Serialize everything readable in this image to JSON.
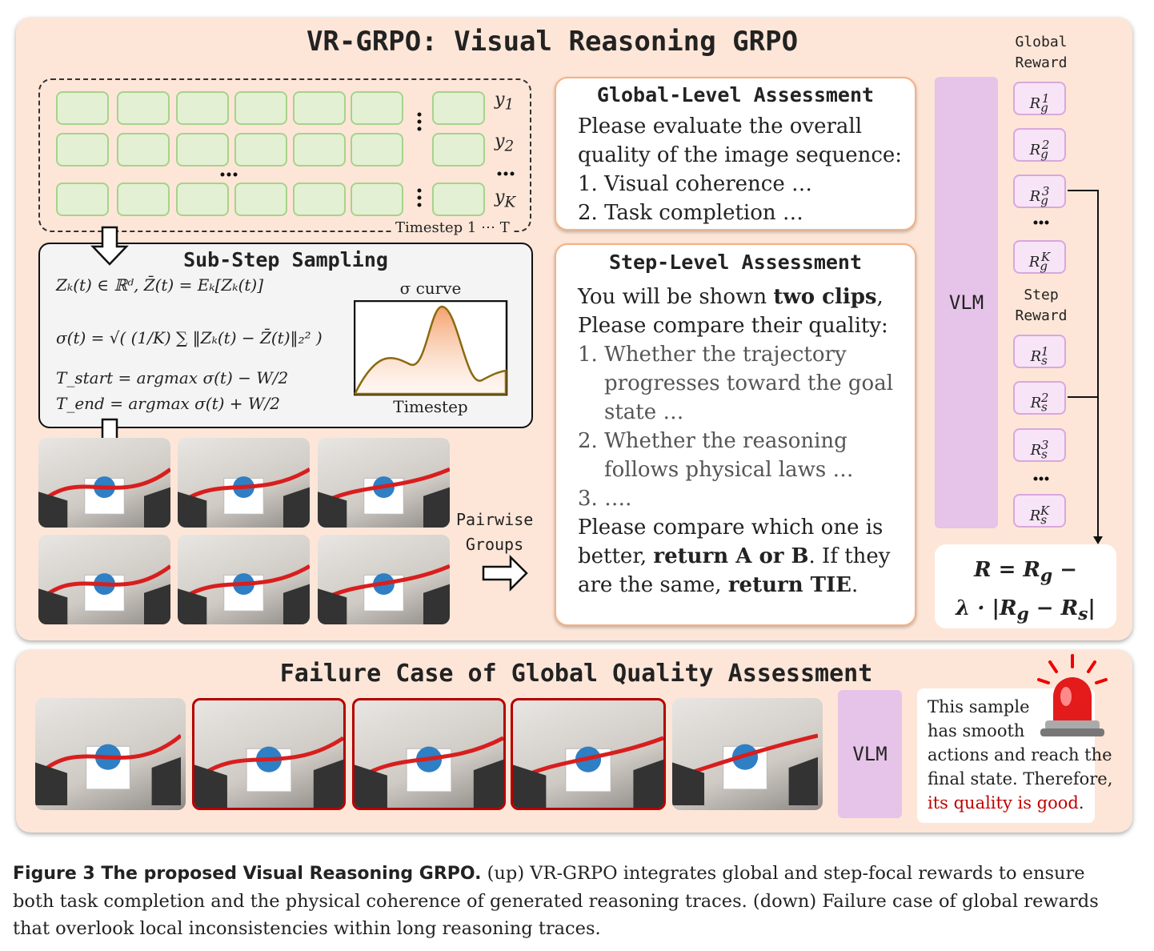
{
  "title": "VR-GRPO: Visual Reasoning GRPO",
  "sequence": {
    "label": "y",
    "subs": [
      "1",
      "2",
      "K"
    ],
    "timestep": "Timestep 1 ⋯ T"
  },
  "sampling": {
    "title": "Sub-Step Sampling",
    "formulas": [
      "Zₖ(t) ∈ ℝᵈ, Z̄(t) = Eₖ[Zₖ(t)]",
      "σ(t) = √( (1/K) ∑ ‖Zₖ(t) − Z̄(t)‖₂² )",
      "T_start = argmax σ(t) − W/2",
      "T_end  = argmax σ(t) + W/2"
    ],
    "curve_title": "σ curve",
    "curve_axis": "Timestep"
  },
  "pairwise": "Pairwise Groups",
  "global_assessment": {
    "title": "Global-Level Assessment",
    "lines": [
      "Please evaluate the overall",
      "quality of the image sequence:",
      "1.   Visual coherence …",
      "2.   Task completion …"
    ]
  },
  "step_assessment": {
    "title": "Step-Level Assessment",
    "intro": [
      "You will be shown ",
      "two clips",
      ","
    ],
    "lines": [
      "Please compare their quality:",
      "1. Whether the trajectory",
      "progresses toward the goal",
      "state …",
      "2. Whether the reasoning",
      "follows physical laws …",
      "3. …."
    ],
    "outro": [
      "Please compare which one is",
      "better, ",
      "return A or B",
      ". If they",
      "are the same, ",
      "return TIE",
      "."
    ]
  },
  "vlm": "VLM",
  "rewards": {
    "global_label": [
      "Global",
      "Reward"
    ],
    "step_label": [
      "Step",
      "Reward"
    ],
    "symbol": "R",
    "global_sub": "g",
    "step_sub": "s",
    "sups": [
      "1",
      "2",
      "3",
      "K"
    ]
  },
  "formula": {
    "line1": [
      "R = R",
      "g",
      " −"
    ],
    "line2": [
      "λ · |R",
      "g",
      " − R",
      "s",
      "|"
    ]
  },
  "failure": {
    "title": "Failure Case of Global Quality Assessment",
    "vlm": "VLM",
    "text": [
      "This sample",
      "has smooth",
      "actions and reach the",
      "final state. Therefore,"
    ],
    "verdict": "its quality is good",
    "end": "."
  },
  "caption": {
    "label": "Figure 3  The proposed Visual Reasoning GRPO.",
    "lines": [
      "(up) VR-GRPO integrates global and step-focal rewards to ensure",
      "both task completion and the physical coherence of generated reasoning traces. (down) Failure case of global rewards",
      "that overlook local inconsistencies within long reasoning traces."
    ]
  }
}
